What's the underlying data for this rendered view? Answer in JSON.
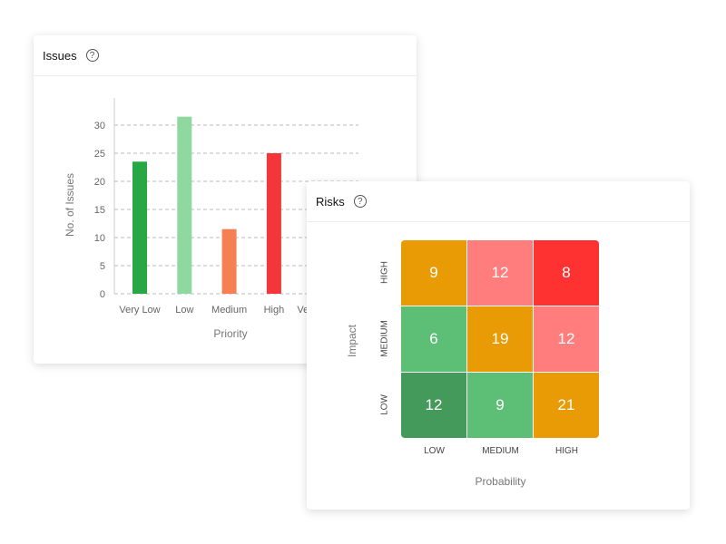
{
  "issues_card": {
    "title": "Issues",
    "help_icon": "?"
  },
  "risks_card": {
    "title": "Risks",
    "help_icon": "?"
  },
  "chart_data": [
    {
      "type": "bar",
      "title": "Issues",
      "xlabel": "Priority",
      "ylabel": "No. of Issues",
      "categories": [
        "Very Low",
        "Low",
        "Medium",
        "High",
        "Very High"
      ],
      "values": [
        23.5,
        31.5,
        11.5,
        25,
        null
      ],
      "colors": [
        "#28a745",
        "#8fd89f",
        "#f77f54",
        "#f23639",
        "#cccccc"
      ],
      "ylim": [
        0,
        30
      ],
      "yticks": [
        0,
        5,
        10,
        15,
        20,
        25,
        30
      ],
      "grid": true
    },
    {
      "type": "heatmap",
      "title": "Risks",
      "xlabel": "Probability",
      "ylabel": "Impact",
      "x_categories": [
        "LOW",
        "MEDIUM",
        "HIGH"
      ],
      "y_categories": [
        "HIGH",
        "MEDIUM",
        "LOW"
      ],
      "values": [
        [
          9,
          12,
          8
        ],
        [
          6,
          19,
          12
        ],
        [
          12,
          9,
          21
        ]
      ],
      "colors": [
        [
          "#e89b05",
          "#ff7d7d",
          "#ff3232"
        ],
        [
          "#5cbf75",
          "#e89b05",
          "#ff7d7d"
        ],
        [
          "#449a5a",
          "#5cbf75",
          "#e89b05"
        ]
      ]
    }
  ]
}
